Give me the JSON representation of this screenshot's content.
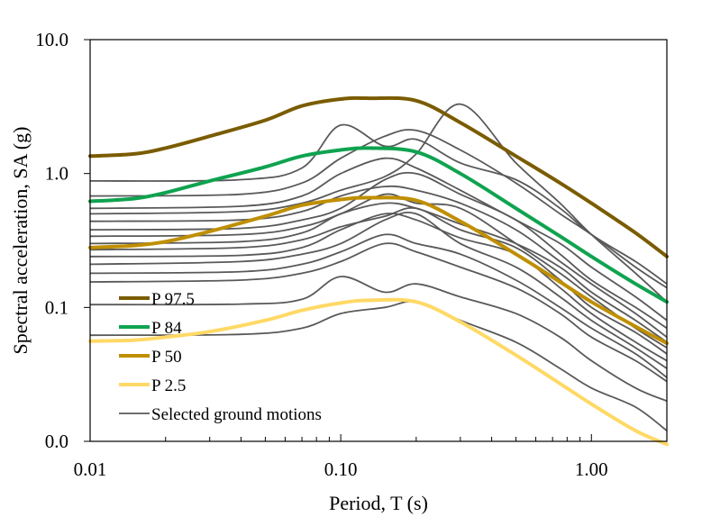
{
  "chart_data": {
    "type": "line",
    "title": "",
    "xlabel": "Period, T (s)",
    "ylabel": "Spectral acceleration, SA (g)",
    "x_scale": "log",
    "y_scale": "log",
    "xlim": [
      0.01,
      2.0
    ],
    "ylim": [
      0.01,
      10.0
    ],
    "x_ticks": [
      {
        "value": 0.01,
        "label": "0.01"
      },
      {
        "value": 0.1,
        "label": "0.10"
      },
      {
        "value": 1.0,
        "label": "1.00"
      }
    ],
    "y_ticks": [
      {
        "value": 0.01,
        "label": "0.0"
      },
      {
        "value": 0.1,
        "label": "0.1"
      },
      {
        "value": 1.0,
        "label": "1.0"
      },
      {
        "value": 10.0,
        "label": "10.0"
      }
    ],
    "grid": false,
    "legend_position": "bottom-left",
    "series": [
      {
        "name": "P 97.5",
        "color": "#7a5c00",
        "width": 4,
        "x": [
          0.01,
          0.015,
          0.02,
          0.03,
          0.05,
          0.07,
          0.1,
          0.13,
          0.2,
          0.3,
          0.5,
          0.75,
          1.0,
          1.5,
          2.0
        ],
        "y": [
          1.35,
          1.4,
          1.55,
          1.9,
          2.5,
          3.2,
          3.6,
          3.65,
          3.5,
          2.4,
          1.35,
          0.85,
          0.6,
          0.36,
          0.24
        ]
      },
      {
        "name": "P 84",
        "color": "#0fa350",
        "width": 4,
        "x": [
          0.01,
          0.015,
          0.02,
          0.03,
          0.05,
          0.07,
          0.1,
          0.13,
          0.2,
          0.3,
          0.5,
          0.75,
          1.0,
          1.5,
          2.0
        ],
        "y": [
          0.62,
          0.65,
          0.72,
          0.88,
          1.12,
          1.35,
          1.5,
          1.55,
          1.45,
          1.0,
          0.55,
          0.34,
          0.24,
          0.15,
          0.11
        ]
      },
      {
        "name": "P 50",
        "color": "#bf8f00",
        "width": 4,
        "x": [
          0.01,
          0.015,
          0.02,
          0.03,
          0.05,
          0.07,
          0.1,
          0.13,
          0.2,
          0.3,
          0.5,
          0.75,
          1.0,
          1.5,
          2.0
        ],
        "y": [
          0.28,
          0.29,
          0.31,
          0.37,
          0.48,
          0.58,
          0.64,
          0.66,
          0.63,
          0.44,
          0.25,
          0.155,
          0.11,
          0.072,
          0.054
        ]
      },
      {
        "name": "P 2.5",
        "color": "#ffd966",
        "width": 4,
        "x": [
          0.01,
          0.015,
          0.02,
          0.03,
          0.05,
          0.07,
          0.1,
          0.13,
          0.2,
          0.3,
          0.5,
          0.75,
          1.0,
          1.5,
          2.0
        ],
        "y": [
          0.056,
          0.057,
          0.06,
          0.066,
          0.08,
          0.095,
          0.108,
          0.113,
          0.11,
          0.078,
          0.044,
          0.027,
          0.019,
          0.012,
          0.0095
        ]
      },
      {
        "name": "Selected ground motions",
        "color": "#595959",
        "width": 1.8,
        "group": [
          {
            "x": [
              0.01,
              0.04,
              0.07,
              0.1,
              0.15,
              0.2,
              0.3,
              0.5,
              0.75,
              1.0,
              1.5,
              2.0
            ],
            "y": [
              0.88,
              0.9,
              1.1,
              2.3,
              1.6,
              1.8,
              1.2,
              0.9,
              0.55,
              0.35,
              0.22,
              0.15
            ]
          },
          {
            "x": [
              0.01,
              0.04,
              0.07,
              0.1,
              0.15,
              0.2,
              0.3,
              0.5,
              0.75,
              1.0,
              1.5,
              2.0
            ],
            "y": [
              0.68,
              0.7,
              0.85,
              1.3,
              1.9,
              2.1,
              1.5,
              0.85,
              0.5,
              0.35,
              0.2,
              0.14
            ]
          },
          {
            "x": [
              0.01,
              0.04,
              0.07,
              0.1,
              0.15,
              0.2,
              0.3,
              0.5,
              0.75,
              1.0,
              1.5,
              2.0
            ],
            "y": [
              0.55,
              0.57,
              0.68,
              1.0,
              1.3,
              1.1,
              0.75,
              0.45,
              0.3,
              0.2,
              0.12,
              0.08
            ]
          },
          {
            "x": [
              0.01,
              0.04,
              0.07,
              0.1,
              0.15,
              0.2,
              0.3,
              0.5,
              0.75,
              1.0,
              1.5,
              2.0
            ],
            "y": [
              0.5,
              0.52,
              0.6,
              0.75,
              0.95,
              1.4,
              3.3,
              1.2,
              0.6,
              0.35,
              0.18,
              0.11
            ]
          },
          {
            "x": [
              0.01,
              0.04,
              0.07,
              0.1,
              0.15,
              0.2,
              0.3,
              0.5,
              0.75,
              1.0,
              1.5,
              2.0
            ],
            "y": [
              0.44,
              0.45,
              0.52,
              0.68,
              0.8,
              0.75,
              0.6,
              0.38,
              0.22,
              0.15,
              0.09,
              0.06
            ]
          },
          {
            "x": [
              0.01,
              0.04,
              0.07,
              0.1,
              0.15,
              0.2,
              0.3,
              0.5,
              0.75,
              1.0,
              1.5,
              2.0
            ],
            "y": [
              0.38,
              0.39,
              0.45,
              0.55,
              0.9,
              1.0,
              0.7,
              0.45,
              0.25,
              0.16,
              0.1,
              0.07
            ]
          },
          {
            "x": [
              0.01,
              0.04,
              0.07,
              0.1,
              0.15,
              0.2,
              0.3,
              0.5,
              0.75,
              1.0,
              1.5,
              2.0
            ],
            "y": [
              0.34,
              0.35,
              0.4,
              0.5,
              0.7,
              0.6,
              0.55,
              0.3,
              0.18,
              0.12,
              0.07,
              0.05
            ]
          },
          {
            "x": [
              0.01,
              0.04,
              0.07,
              0.1,
              0.15,
              0.2,
              0.3,
              0.5,
              0.75,
              1.0,
              1.5,
              2.0
            ],
            "y": [
              0.3,
              0.31,
              0.36,
              0.5,
              0.6,
              0.55,
              0.42,
              0.3,
              0.2,
              0.13,
              0.08,
              0.055
            ]
          },
          {
            "x": [
              0.01,
              0.04,
              0.07,
              0.1,
              0.15,
              0.2,
              0.3,
              0.5,
              0.75,
              1.0,
              1.5,
              2.0
            ],
            "y": [
              0.27,
              0.28,
              0.32,
              0.4,
              0.48,
              0.55,
              0.38,
              0.28,
              0.16,
              0.1,
              0.065,
              0.045
            ]
          },
          {
            "x": [
              0.01,
              0.04,
              0.07,
              0.1,
              0.15,
              0.2,
              0.3,
              0.5,
              0.75,
              1.0,
              1.5,
              2.0
            ],
            "y": [
              0.24,
              0.245,
              0.28,
              0.38,
              0.5,
              0.45,
              0.33,
              0.25,
              0.14,
              0.09,
              0.055,
              0.04
            ]
          },
          {
            "x": [
              0.01,
              0.04,
              0.07,
              0.1,
              0.15,
              0.2,
              0.3,
              0.5,
              0.75,
              1.0,
              1.5,
              2.0
            ],
            "y": [
              0.21,
              0.22,
              0.25,
              0.3,
              0.45,
              0.5,
              0.3,
              0.2,
              0.12,
              0.08,
              0.05,
              0.035
            ]
          },
          {
            "x": [
              0.01,
              0.04,
              0.07,
              0.1,
              0.15,
              0.2,
              0.3,
              0.5,
              0.75,
              1.0,
              1.5,
              2.0
            ],
            "y": [
              0.18,
              0.185,
              0.21,
              0.26,
              0.35,
              0.3,
              0.25,
              0.16,
              0.1,
              0.07,
              0.045,
              0.03
            ]
          },
          {
            "x": [
              0.01,
              0.04,
              0.07,
              0.1,
              0.15,
              0.2,
              0.3,
              0.5,
              0.75,
              1.0,
              1.5,
              2.0
            ],
            "y": [
              0.155,
              0.16,
              0.18,
              0.22,
              0.3,
              0.26,
              0.2,
              0.14,
              0.09,
              0.06,
              0.04,
              0.028
            ]
          },
          {
            "x": [
              0.01,
              0.04,
              0.07,
              0.1,
              0.15,
              0.2,
              0.3,
              0.5,
              0.75,
              1.0,
              1.5,
              2.0
            ],
            "y": [
              0.105,
              0.106,
              0.115,
              0.17,
              0.13,
              0.15,
              0.12,
              0.09,
              0.06,
              0.04,
              0.025,
              0.02
            ]
          },
          {
            "x": [
              0.01,
              0.04,
              0.07,
              0.1,
              0.15,
              0.2,
              0.3,
              0.5,
              0.75,
              1.0,
              1.5,
              2.0
            ],
            "y": [
              0.062,
              0.063,
              0.07,
              0.09,
              0.1,
              0.11,
              0.08,
              0.055,
              0.035,
              0.025,
              0.018,
              0.012
            ]
          }
        ]
      }
    ]
  }
}
